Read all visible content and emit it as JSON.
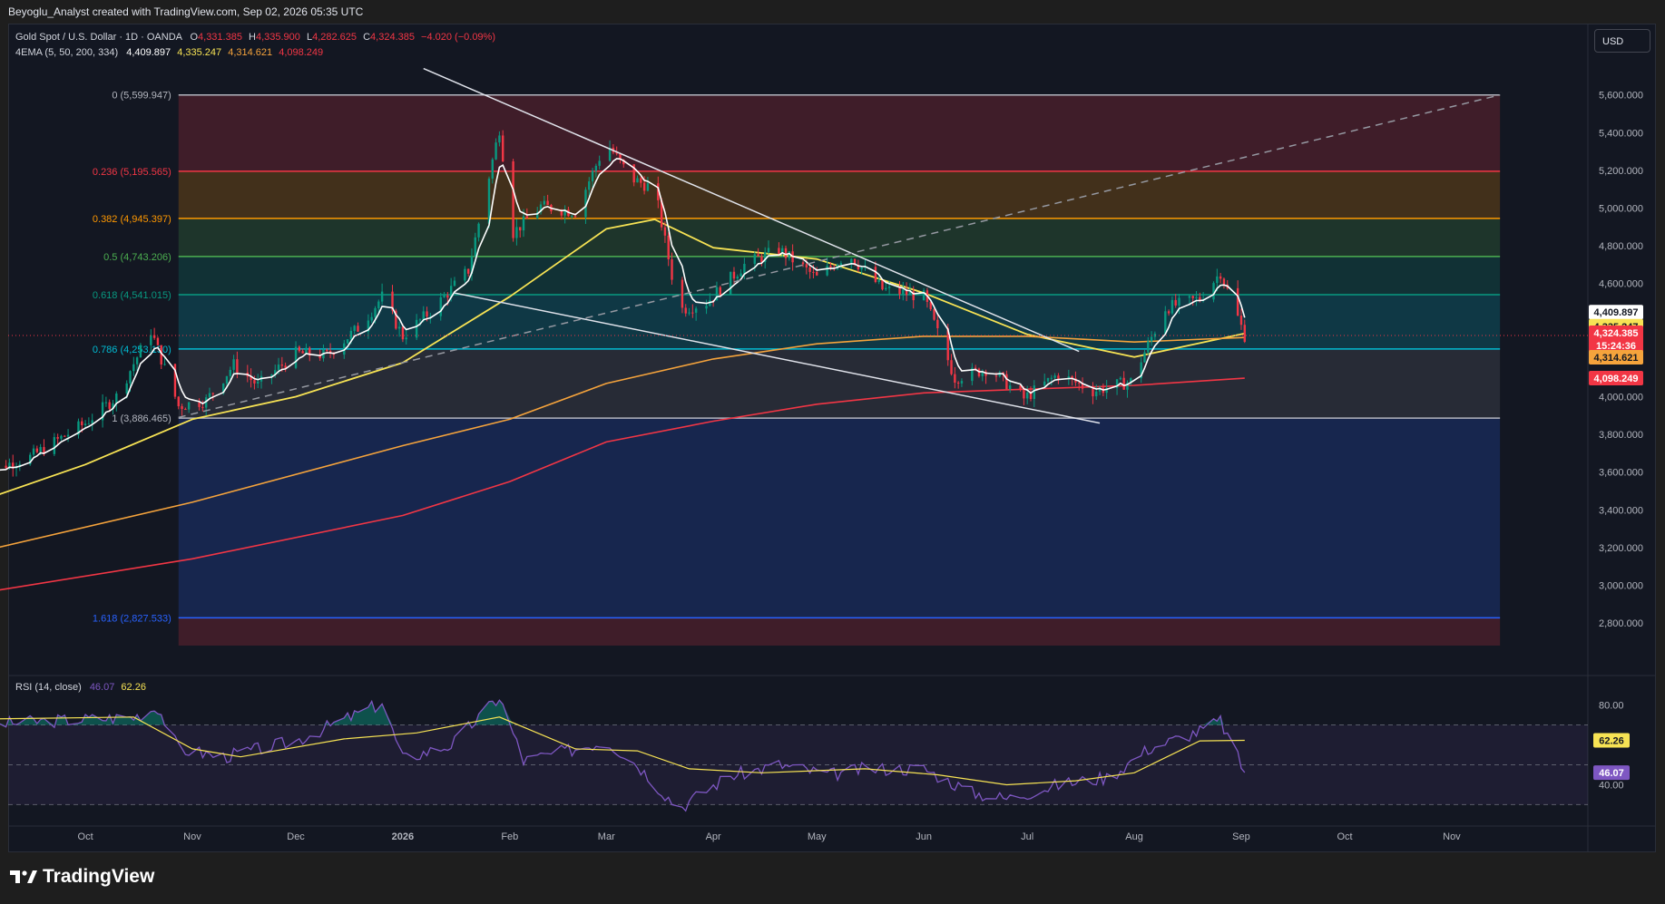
{
  "header": {
    "caption": "Beyoglu_Analyst created with TradingView.com, Sep 02, 2026 05:35 UTC"
  },
  "legend": {
    "symbol": "Gold Spot / U.S. Dollar · 1D · OANDA",
    "o_label": "O",
    "o_value": "4,331.385",
    "h_label": "H",
    "h_value": "4,335.900",
    "l_label": "L",
    "l_value": "4,282.625",
    "c_label": "C",
    "c_value": "4,324.385",
    "change": "−4.020 (−0.09%)",
    "ema_label": "4EMA (5, 50, 200, 334)",
    "ema_values": [
      "4,409.897",
      "4,335.247",
      "4,314.621",
      "4,098.249"
    ],
    "rsi_label": "RSI (14, close)",
    "rsi_values": [
      "46.07",
      "62.26"
    ]
  },
  "currency_button": "USD",
  "brand": {
    "name": "TradingView",
    "icon": "tradingview-logo-icon"
  },
  "colors": {
    "up": "#089981",
    "down": "#f23645",
    "ema5": "#ffffff",
    "ema50": "#f7e354",
    "ema200": "#f5a33c",
    "ema334": "#f23645",
    "rsi": "#7e57c2",
    "rsi_ma": "#f7e354"
  },
  "chart_data": [
    {
      "type": "candlestick",
      "title": "Gold Spot / U.S. Dollar · 1D · OANDA",
      "x_ticks": [
        "Oct",
        "Nov",
        "Dec",
        "2026",
        "Feb",
        "Mar",
        "Apr",
        "May",
        "Jun",
        "Jul",
        "Aug",
        "Sep",
        "Oct",
        "Nov"
      ],
      "y_ticks": [
        2800,
        3000,
        3200,
        3400,
        3600,
        3800,
        4000,
        4200,
        4400,
        4600,
        4800,
        5000,
        5200,
        5400,
        5600
      ],
      "y_tick_labels": [
        "2,800.000",
        "3,000.000",
        "3,200.000",
        "3,400.000",
        "3,600.000",
        "3,800.000",
        "4,000.000",
        "4,200.000",
        "4,400.000",
        "4,600.000",
        "4,800.000",
        "5,000.000",
        "5,200.000",
        "5,400.000",
        "5,600.000"
      ],
      "ylim": [
        2680,
        5690
      ],
      "close_path": [
        [
          "2025-09-01",
          3600
        ],
        [
          "2025-09-15",
          3680
        ],
        [
          "2025-10-01",
          3860
        ],
        [
          "2025-10-10",
          4000
        ],
        [
          "2025-10-20",
          4350
        ],
        [
          "2025-10-28",
          3950
        ],
        [
          "2025-11-05",
          3980
        ],
        [
          "2025-11-13",
          4170
        ],
        [
          "2025-11-20",
          4060
        ],
        [
          "2025-12-01",
          4230
        ],
        [
          "2025-12-10",
          4220
        ],
        [
          "2025-12-20",
          4380
        ],
        [
          "2025-12-26",
          4530
        ],
        [
          "2026-01-01",
          4320
        ],
        [
          "2026-01-10",
          4470
        ],
        [
          "2026-01-20",
          4670
        ],
        [
          "2026-01-29",
          5420
        ],
        [
          "2026-02-02",
          4870
        ],
        [
          "2026-02-10",
          5010
        ],
        [
          "2026-02-20",
          4980
        ],
        [
          "2026-03-01",
          5350
        ],
        [
          "2026-03-08",
          5160
        ],
        [
          "2026-03-15",
          5100
        ],
        [
          "2026-03-22",
          4460
        ],
        [
          "2026-03-30",
          4500
        ],
        [
          "2026-04-10",
          4700
        ],
        [
          "2026-04-20",
          4780
        ],
        [
          "2026-05-01",
          4630
        ],
        [
          "2026-05-10",
          4760
        ],
        [
          "2026-05-20",
          4570
        ],
        [
          "2026-06-01",
          4530
        ],
        [
          "2026-06-10",
          4100
        ],
        [
          "2026-06-20",
          4150
        ],
        [
          "2026-06-30",
          3990
        ],
        [
          "2026-07-10",
          4120
        ],
        [
          "2026-07-20",
          4030
        ],
        [
          "2026-07-31",
          4080
        ],
        [
          "2026-08-10",
          4470
        ],
        [
          "2026-08-20",
          4520
        ],
        [
          "2026-08-26",
          4660
        ],
        [
          "2026-09-02",
          4324
        ]
      ],
      "series": [
        {
          "name": "EMA 5",
          "last": 4409.897
        },
        {
          "name": "EMA 50",
          "last": 4335.247,
          "path": [
            [
              "2025-09-01",
              3450
            ],
            [
              "2025-10-01",
              3640
            ],
            [
              "2025-11-01",
              3880
            ],
            [
              "2025-12-01",
              4000
            ],
            [
              "2026-01-01",
              4180
            ],
            [
              "2026-02-01",
              4530
            ],
            [
              "2026-03-01",
              4890
            ],
            [
              "2026-03-15",
              4940
            ],
            [
              "2026-04-01",
              4790
            ],
            [
              "2026-05-01",
              4730
            ],
            [
              "2026-06-01",
              4550
            ],
            [
              "2026-07-01",
              4330
            ],
            [
              "2026-08-01",
              4210
            ],
            [
              "2026-09-02",
              4335
            ]
          ]
        },
        {
          "name": "EMA 200",
          "last": 4314.621,
          "path": [
            [
              "2025-09-01",
              3180
            ],
            [
              "2025-11-01",
              3440
            ],
            [
              "2026-01-01",
              3740
            ],
            [
              "2026-02-01",
              3880
            ],
            [
              "2026-03-01",
              4070
            ],
            [
              "2026-04-01",
              4200
            ],
            [
              "2026-05-01",
              4280
            ],
            [
              "2026-06-01",
              4320
            ],
            [
              "2026-07-01",
              4320
            ],
            [
              "2026-08-01",
              4290
            ],
            [
              "2026-09-02",
              4314
            ]
          ]
        },
        {
          "name": "EMA 334",
          "last": 4098.249,
          "path": [
            [
              "2025-09-01",
              2960
            ],
            [
              "2025-11-01",
              3140
            ],
            [
              "2026-01-01",
              3370
            ],
            [
              "2026-02-01",
              3550
            ],
            [
              "2026-03-01",
              3760
            ],
            [
              "2026-04-01",
              3870
            ],
            [
              "2026-05-01",
              3960
            ],
            [
              "2026-06-01",
              4020
            ],
            [
              "2026-07-01",
              4040
            ],
            [
              "2026-08-01",
              4060
            ],
            [
              "2026-09-02",
              4098
            ]
          ]
        }
      ],
      "price_tags": [
        {
          "value": "4,409.897",
          "price": 4409.897,
          "series": "EMA 5"
        },
        {
          "value": "4,335.247",
          "price": 4335.247,
          "series": "EMA 50"
        },
        {
          "value": "4,324.385",
          "price": 4324.385,
          "series": "Close",
          "countdown": "15:24:36"
        },
        {
          "value": "4,314.621",
          "price": 4314.621,
          "series": "EMA 200"
        },
        {
          "value": "4,098.249",
          "price": 4098.249,
          "series": "EMA 334"
        }
      ],
      "fibonacci": {
        "start": "2025-10-28",
        "end": "2026-11-15",
        "levels": [
          {
            "ratio": "0",
            "label": "0 (5,599.947)",
            "price": 5599.947,
            "color": "#b2b5be"
          },
          {
            "ratio": "0.236",
            "label": "0.236 (5,195.565)",
            "price": 5195.565,
            "color": "#f23645"
          },
          {
            "ratio": "0.382",
            "label": "0.382 (4,945.397)",
            "price": 4945.397,
            "color": "#ff9800"
          },
          {
            "ratio": "0.5",
            "label": "0.5 (4,743.206)",
            "price": 4743.206,
            "color": "#4caf50"
          },
          {
            "ratio": "0.618",
            "label": "0.618 (4,541.015)",
            "price": 4541.015,
            "color": "#089981"
          },
          {
            "ratio": "0.786",
            "label": "0.786 (4,253.150)",
            "price": 4253.15,
            "color": "#00bcd4"
          },
          {
            "ratio": "1",
            "label": "1 (3,886.465)",
            "price": 3886.465,
            "color": "#b2b5be"
          },
          {
            "ratio": "1.618",
            "label": "1.618 (2,827.533)",
            "price": 2827.533,
            "color": "#2962ff"
          }
        ]
      },
      "trendlines": [
        {
          "name": "upper-wedge-line",
          "from": [
            "2026-01-07",
            5740
          ],
          "to": [
            "2026-07-16",
            4240
          ]
        },
        {
          "name": "lower-wedge-line",
          "from": [
            "2026-01-16",
            4550
          ],
          "to": [
            "2026-07-22",
            3860
          ]
        },
        {
          "name": "dashed-trend-line",
          "from": [
            "2025-10-28",
            3890
          ],
          "to": [
            "2026-11-15",
            5600
          ]
        }
      ]
    },
    {
      "type": "line",
      "title": "RSI (14, close)",
      "y_ticks": [
        40,
        80
      ],
      "y_tick_labels": [
        "40.00",
        "80.00"
      ],
      "levels": [
        30,
        50,
        70
      ],
      "ylim": [
        22,
        88
      ],
      "series": [
        {
          "name": "RSI",
          "last": 46.07,
          "path": [
            [
              "2025-09-01",
              70
            ],
            [
              "2025-09-20",
              72
            ],
            [
              "2025-10-15",
              74
            ],
            [
              "2025-10-22",
              79
            ],
            [
              "2025-10-28",
              58
            ],
            [
              "2025-11-10",
              54
            ],
            [
              "2025-12-01",
              62
            ],
            [
              "2025-12-26",
              81
            ],
            [
              "2026-01-01",
              53
            ],
            [
              "2026-01-15",
              60
            ],
            [
              "2026-01-29",
              84
            ],
            [
              "2026-02-05",
              52
            ],
            [
              "2026-02-20",
              58
            ],
            [
              "2026-03-01",
              62
            ],
            [
              "2026-03-10",
              50
            ],
            [
              "2026-03-22",
              28
            ],
            [
              "2026-04-05",
              44
            ],
            [
              "2026-04-20",
              50
            ],
            [
              "2026-05-05",
              45
            ],
            [
              "2026-05-15",
              48
            ],
            [
              "2026-06-01",
              48
            ],
            [
              "2026-06-15",
              36
            ],
            [
              "2026-06-25",
              33
            ],
            [
              "2026-07-10",
              40
            ],
            [
              "2026-07-25",
              44
            ],
            [
              "2026-08-05",
              58
            ],
            [
              "2026-08-20",
              67
            ],
            [
              "2026-08-26",
              72
            ],
            [
              "2026-09-02",
              46.07
            ]
          ]
        },
        {
          "name": "RSI-based MA",
          "last": 62.26,
          "path": [
            [
              "2025-09-01",
              73
            ],
            [
              "2025-10-15",
              74
            ],
            [
              "2025-11-01",
              58
            ],
            [
              "2025-11-15",
              54
            ],
            [
              "2025-12-15",
              63
            ],
            [
              "2026-01-05",
              66
            ],
            [
              "2026-01-29",
              74
            ],
            [
              "2026-02-20",
              58
            ],
            [
              "2026-03-10",
              57
            ],
            [
              "2026-03-25",
              48
            ],
            [
              "2026-04-15",
              46
            ],
            [
              "2026-05-15",
              48
            ],
            [
              "2026-06-05",
              45
            ],
            [
              "2026-06-25",
              40
            ],
            [
              "2026-07-15",
              42
            ],
            [
              "2026-08-01",
              46
            ],
            [
              "2026-08-20",
              62
            ],
            [
              "2026-09-02",
              62.26
            ]
          ]
        }
      ]
    }
  ]
}
